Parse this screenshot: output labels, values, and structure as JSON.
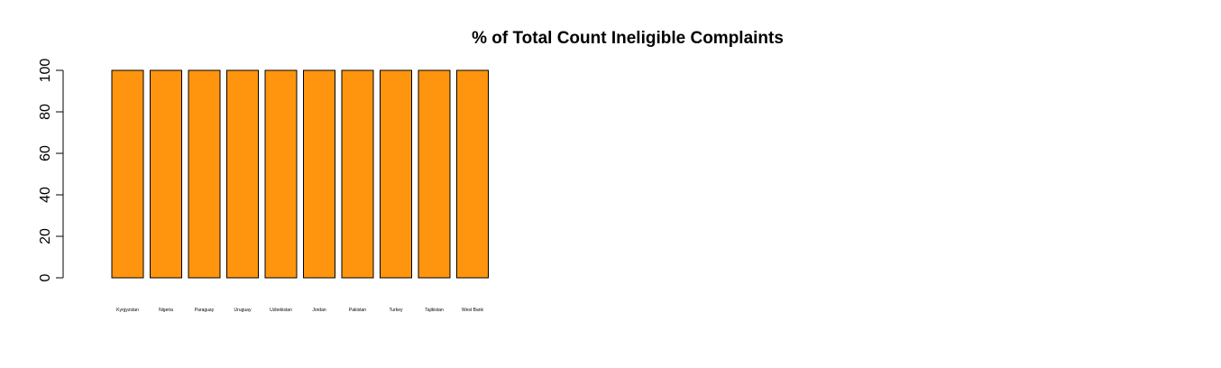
{
  "chart_data": {
    "type": "bar",
    "title": "% of Total Count Ineligible Complaints",
    "xlabel": "",
    "ylabel": "",
    "categories": [
      "Kyrgyzstan",
      "Nigeria",
      "Paraguay",
      "Uruguay",
      "Uzbekistan",
      "Jordan",
      "Pakistan",
      "Turkey",
      "Tajikistan",
      "West Bank"
    ],
    "values": [
      100,
      100,
      100,
      100,
      100,
      100,
      100,
      100,
      100,
      100
    ],
    "ylim": [
      0,
      100
    ],
    "yticks": [
      0,
      20,
      40,
      60,
      80,
      100
    ],
    "grid": false,
    "legend": "none",
    "bar_color": "#FF950E",
    "bar_border_color": "#000000"
  }
}
